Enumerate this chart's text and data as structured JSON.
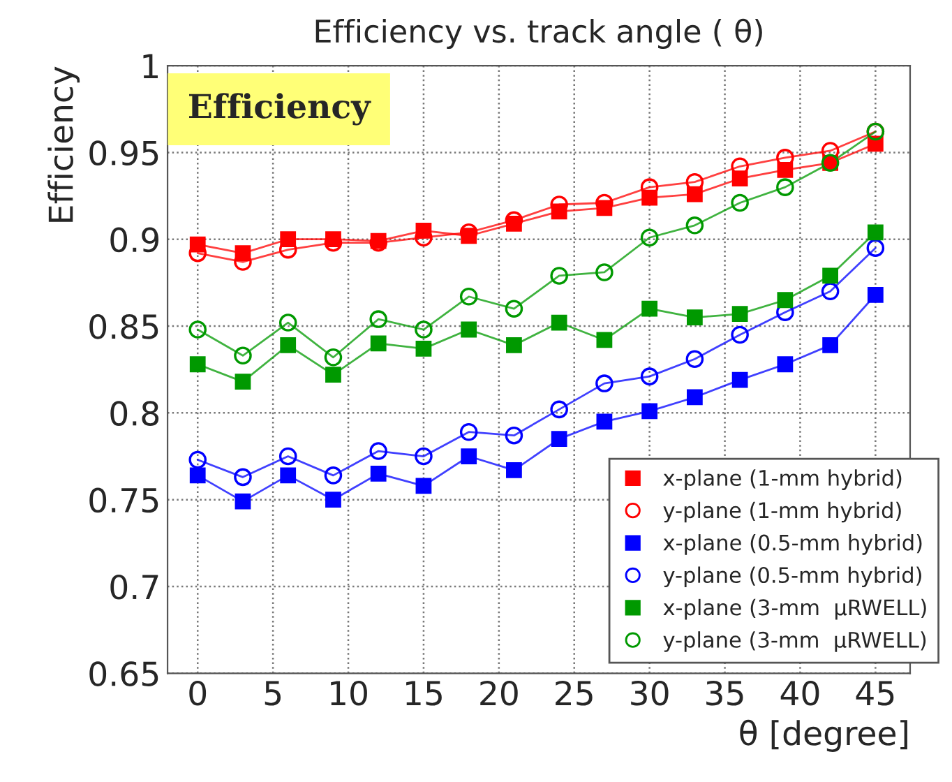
{
  "chart_data": {
    "type": "line",
    "title": "Efficiency vs. track angle ( θ)",
    "xlabel": "θ [degree]",
    "ylabel": "Efficiency",
    "annotations": [
      "Efficiency"
    ],
    "x": [
      0,
      3,
      6,
      9,
      12,
      15,
      18,
      21,
      24,
      27,
      30,
      33,
      36,
      39,
      42,
      45
    ],
    "series": [
      {
        "name": "x-plane (1-mm hybrid)",
        "color": "#ff0000",
        "marker": "square",
        "values": [
          0.897,
          0.892,
          0.9,
          0.9,
          0.899,
          0.905,
          0.902,
          0.909,
          0.916,
          0.918,
          0.924,
          0.926,
          0.935,
          0.94,
          0.944,
          0.955
        ]
      },
      {
        "name": "y-plane (1-mm hybrid)",
        "color": "#ff0000",
        "marker": "circle",
        "values": [
          0.892,
          0.887,
          0.894,
          0.898,
          0.898,
          0.901,
          0.904,
          0.911,
          0.92,
          0.921,
          0.93,
          0.933,
          0.942,
          0.947,
          0.951,
          0.962
        ]
      },
      {
        "name": "x-plane (0.5-mm hybrid)",
        "color": "#0000ff",
        "marker": "square",
        "values": [
          0.764,
          0.749,
          0.764,
          0.75,
          0.765,
          0.758,
          0.775,
          0.767,
          0.785,
          0.795,
          0.801,
          0.809,
          0.819,
          0.828,
          0.839,
          0.868
        ]
      },
      {
        "name": "y-plane (0.5-mm hybrid)",
        "color": "#0000ff",
        "marker": "circle",
        "values": [
          0.773,
          0.763,
          0.775,
          0.764,
          0.778,
          0.775,
          0.789,
          0.787,
          0.802,
          0.817,
          0.821,
          0.831,
          0.845,
          0.858,
          0.87,
          0.895
        ]
      },
      {
        "name": "x-plane (3-mm  μRWELL)",
        "color": "#009900",
        "marker": "square",
        "values": [
          0.828,
          0.818,
          0.839,
          0.822,
          0.84,
          0.837,
          0.848,
          0.839,
          0.852,
          0.842,
          0.86,
          0.855,
          0.857,
          0.865,
          0.879,
          0.904
        ]
      },
      {
        "name": "y-plane (3-mm  μRWELL)",
        "color": "#009900",
        "marker": "circle",
        "values": [
          0.848,
          0.833,
          0.852,
          0.832,
          0.854,
          0.848,
          0.867,
          0.86,
          0.879,
          0.881,
          0.901,
          0.908,
          0.921,
          0.93,
          0.944,
          0.962
        ]
      }
    ],
    "xlim": [
      -2,
      47.3
    ],
    "ylim": [
      0.65,
      1
    ],
    "xticks": [
      0,
      5,
      10,
      15,
      20,
      25,
      30,
      35,
      40,
      45
    ],
    "yticks": [
      0.65,
      0.7,
      0.75,
      0.8,
      0.85,
      0.9,
      0.95,
      1
    ],
    "grid": true,
    "legend": "bottom right",
    "line_style": "solid"
  }
}
